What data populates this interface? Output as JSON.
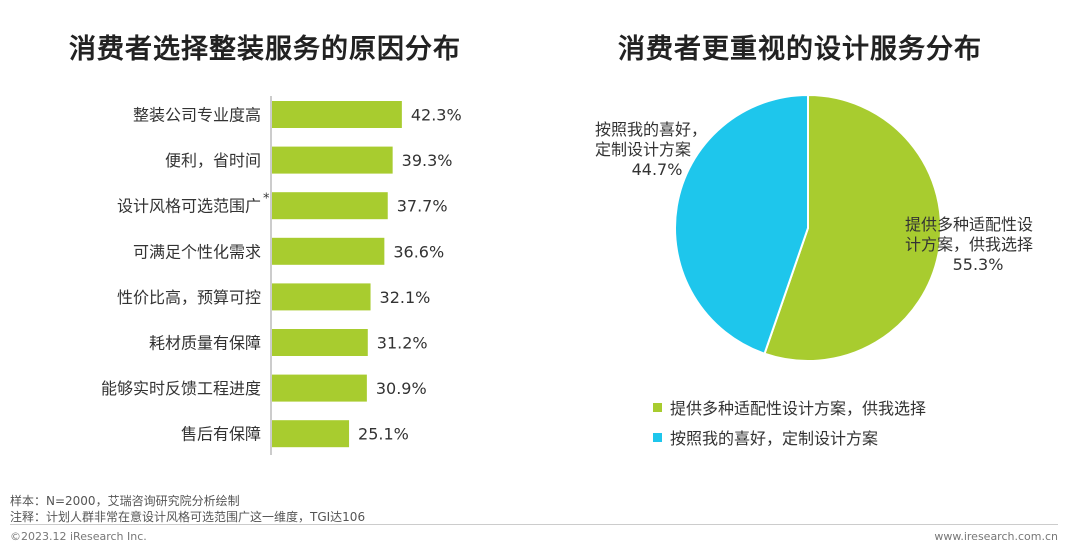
{
  "left_title": "消费者选择整装服务的原因分布",
  "right_title": "消费者更重视的设计服务分布",
  "chart_data": [
    {
      "type": "bar",
      "orientation": "horizontal",
      "title": "消费者选择整装服务的原因分布",
      "categories": [
        "整装公司专业度高",
        "便利，省时间",
        "设计风格可选范围广",
        "可满足个性化需求",
        "性价比高，预算可控",
        "耗材质量有保障",
        "能够实时反馈工程进度",
        "售后有保障"
      ],
      "category_footnote": {
        "index": 2,
        "mark": "*"
      },
      "values": [
        42.3,
        39.3,
        37.7,
        36.6,
        32.1,
        31.2,
        30.9,
        25.1
      ],
      "value_labels": [
        "42.3%",
        "39.3%",
        "37.7%",
        "36.6%",
        "32.1%",
        "31.2%",
        "30.9%",
        "25.1%"
      ],
      "color": "#a8cc2f",
      "xlim": [
        0,
        50
      ]
    },
    {
      "type": "pie",
      "title": "消费者更重视的设计服务分布",
      "slices": [
        {
          "label": "提供多种适配性设计方案，供我选择",
          "chart_label_lines": [
            "提供多种适配性设",
            "计方案，供我选择"
          ],
          "value": 55.3,
          "value_label": "55.3%",
          "color": "#a8cc2f"
        },
        {
          "label": "按照我的喜好，定制设计方案",
          "chart_label_lines": [
            "按照我的喜好，",
            "定制设计方案"
          ],
          "value": 44.7,
          "value_label": "44.7%",
          "color": "#1ec6ec"
        }
      ],
      "legend_position": "bottom"
    }
  ],
  "footer": {
    "sample": "样本：N=2000，艾瑞咨询研究院分析绘制",
    "remark": "注释：计划人群非常在意设计风格可选范围广这一维度，TGI达106",
    "copyright": "©2023.12 iResearch Inc.",
    "website": "www.iresearch.com.cn"
  }
}
